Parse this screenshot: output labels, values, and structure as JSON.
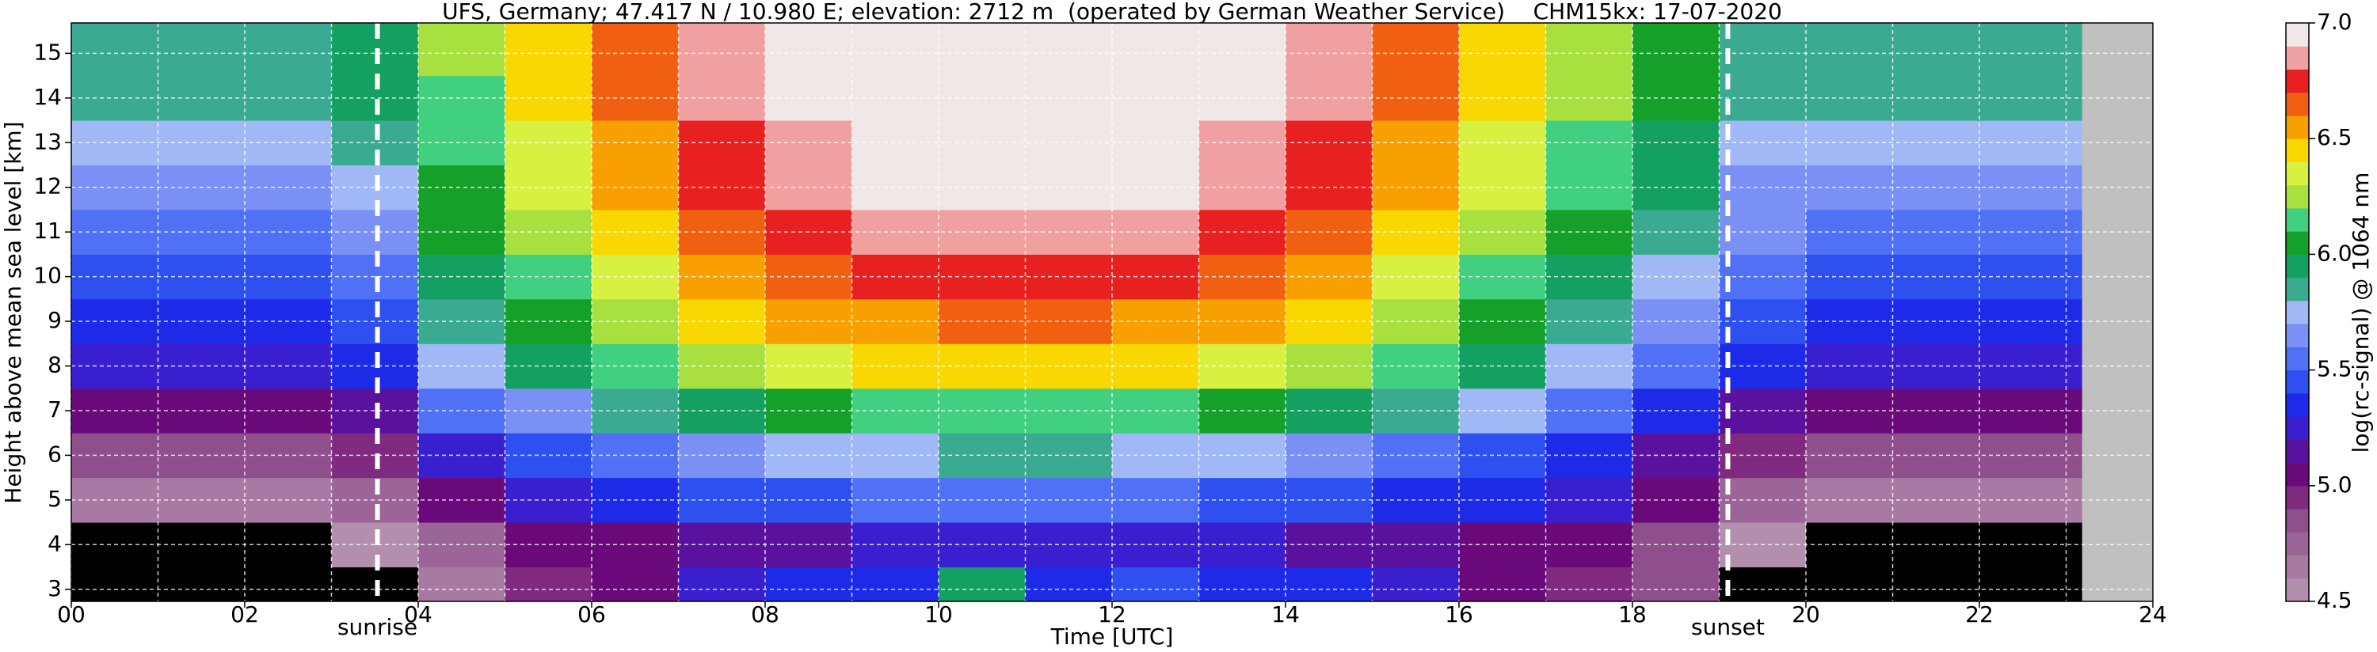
{
  "chart_data": {
    "type": "heatmap",
    "title": "UFS, Germany; 47.417 N / 10.980 E; elevation: 2712 m  (operated by German Weather Service)    CHM15kx: 17-07-2020",
    "xlabel": "Time [UTC]",
    "ylabel": "Height above mean sea level [km]",
    "colorbar_label": "log(rc-signal) @ 1064 nm",
    "xlim": [
      0,
      24
    ],
    "ylim": [
      2.73,
      15.68
    ],
    "xticks": [
      {
        "value": 0,
        "label": "00"
      },
      {
        "value": 2,
        "label": "02"
      },
      {
        "value": 4,
        "label": "04"
      },
      {
        "value": 6,
        "label": "06"
      },
      {
        "value": 8,
        "label": "08"
      },
      10,
      12,
      14,
      16,
      18,
      20,
      22,
      24
    ],
    "xminor": [
      1,
      3,
      5,
      7,
      9,
      11,
      13,
      15,
      17,
      19,
      21,
      23
    ],
    "yticks": [
      3,
      4,
      5,
      6,
      7,
      8,
      9,
      10,
      11,
      12,
      13,
      14,
      15
    ],
    "grid": true,
    "x_edges": [
      0,
      1,
      2,
      3,
      4,
      5,
      6,
      7,
      8,
      9,
      10,
      11,
      12,
      13,
      14,
      15,
      16,
      17,
      18,
      19,
      20,
      21,
      22,
      23.18
    ],
    "y_edges": [
      2.73,
      3.5,
      4.5,
      5.5,
      6.5,
      7.5,
      8.5,
      9.5,
      10.5,
      11.5,
      12.5,
      13.5,
      14.5,
      15.68
    ],
    "z": [
      [
        4.4,
        4.4,
        4.4,
        4.4,
        4.6,
        4.9,
        5.0,
        5.2,
        5.3,
        5.3,
        5.9,
        5.3,
        5.4,
        5.3,
        5.3,
        5.2,
        5.0,
        4.9,
        4.8,
        4.4,
        4.4,
        4.4,
        4.4
      ],
      [
        4.4,
        4.4,
        4.4,
        4.5,
        4.7,
        5.0,
        5.0,
        5.1,
        5.1,
        5.2,
        5.2,
        5.2,
        5.2,
        5.2,
        5.1,
        5.1,
        5.0,
        5.0,
        4.8,
        4.5,
        4.4,
        4.4,
        4.4
      ],
      [
        4.6,
        4.6,
        4.6,
        4.7,
        5.0,
        5.2,
        5.3,
        5.4,
        5.4,
        5.5,
        5.5,
        5.5,
        5.5,
        5.4,
        5.4,
        5.3,
        5.3,
        5.2,
        5.0,
        4.7,
        4.6,
        4.6,
        4.6
      ],
      [
        4.8,
        4.8,
        4.8,
        4.9,
        5.2,
        5.4,
        5.5,
        5.6,
        5.7,
        5.7,
        5.8,
        5.8,
        5.7,
        5.7,
        5.6,
        5.5,
        5.4,
        5.3,
        5.1,
        4.9,
        4.8,
        4.8,
        4.8
      ],
      [
        5.0,
        5.0,
        5.0,
        5.1,
        5.5,
        5.6,
        5.8,
        5.9,
        6.0,
        6.1,
        6.1,
        6.1,
        6.1,
        6.0,
        5.9,
        5.8,
        5.7,
        5.5,
        5.3,
        5.1,
        5.0,
        5.0,
        5.0
      ],
      [
        5.2,
        5.2,
        5.2,
        5.3,
        5.7,
        5.9,
        6.1,
        6.2,
        6.3,
        6.4,
        6.4,
        6.4,
        6.4,
        6.3,
        6.2,
        6.1,
        5.9,
        5.7,
        5.5,
        5.3,
        5.2,
        5.2,
        5.2
      ],
      [
        5.3,
        5.3,
        5.3,
        5.4,
        5.8,
        6.0,
        6.2,
        6.4,
        6.5,
        6.5,
        6.6,
        6.6,
        6.5,
        6.5,
        6.4,
        6.2,
        6.0,
        5.8,
        5.6,
        5.4,
        5.3,
        5.3,
        5.3
      ],
      [
        5.4,
        5.4,
        5.4,
        5.5,
        5.9,
        6.1,
        6.3,
        6.5,
        6.6,
        6.7,
        6.7,
        6.7,
        6.7,
        6.6,
        6.5,
        6.3,
        6.1,
        5.9,
        5.7,
        5.5,
        5.4,
        5.4,
        5.4
      ],
      [
        5.5,
        5.5,
        5.5,
        5.6,
        6.0,
        6.2,
        6.4,
        6.6,
        6.7,
        6.8,
        6.8,
        6.8,
        6.8,
        6.7,
        6.6,
        6.4,
        6.2,
        6.0,
        5.8,
        5.6,
        5.5,
        5.5,
        5.5
      ],
      [
        5.6,
        5.6,
        5.6,
        5.7,
        6.0,
        6.3,
        6.5,
        6.7,
        6.8,
        6.9,
        6.9,
        6.9,
        6.9,
        6.8,
        6.7,
        6.5,
        6.3,
        6.1,
        5.9,
        5.6,
        5.6,
        5.6,
        5.6
      ],
      [
        5.7,
        5.7,
        5.7,
        5.8,
        6.1,
        6.3,
        6.5,
        6.7,
        6.8,
        6.9,
        6.9,
        6.9,
        6.9,
        6.8,
        6.7,
        6.5,
        6.3,
        6.1,
        5.9,
        5.7,
        5.7,
        5.7,
        5.7
      ],
      [
        5.8,
        5.8,
        5.8,
        5.9,
        6.1,
        6.4,
        6.6,
        6.8,
        6.9,
        6.9,
        6.9,
        6.9,
        6.9,
        6.9,
        6.8,
        6.6,
        6.4,
        6.2,
        6.0,
        5.8,
        5.8,
        5.8,
        5.8
      ],
      [
        5.8,
        5.8,
        5.8,
        5.9,
        6.2,
        6.4,
        6.6,
        6.8,
        6.9,
        6.9,
        6.9,
        6.9,
        6.9,
        6.9,
        6.8,
        6.6,
        6.4,
        6.2,
        6.0,
        5.8,
        5.8,
        5.8,
        5.8
      ]
    ],
    "zlim": [
      4.5,
      7.0
    ],
    "zticks": [
      4.5,
      {
        "value": 5,
        "label": "5.0"
      },
      5.5,
      {
        "value": 6,
        "label": "6.0"
      },
      6.5,
      {
        "value": 7,
        "label": "7.0"
      }
    ],
    "colorscale": [
      "#b38fae",
      "#a87aa3",
      "#9c6598",
      "#8f4f8d",
      "#7f2a7f",
      "#6a0a7a",
      "#5a129e",
      "#3a1fd0",
      "#1d2be8",
      "#2e50f0",
      "#5070f5",
      "#7a90f5",
      "#a0b8f5",
      "#3aaa90",
      "#13a060",
      "#15a02a",
      "#40d080",
      "#a8e040",
      "#d8f040",
      "#f8d800",
      "#f8a000",
      "#f06010",
      "#e82020",
      "#f0a0a0",
      "#f0e8e8"
    ],
    "under_color": "#000000",
    "nodata_color": "#c0c0c0",
    "annotations": [
      {
        "text": "sunrise",
        "x": 3.53
      },
      {
        "text": "sunset",
        "x": 19.1
      }
    ]
  }
}
